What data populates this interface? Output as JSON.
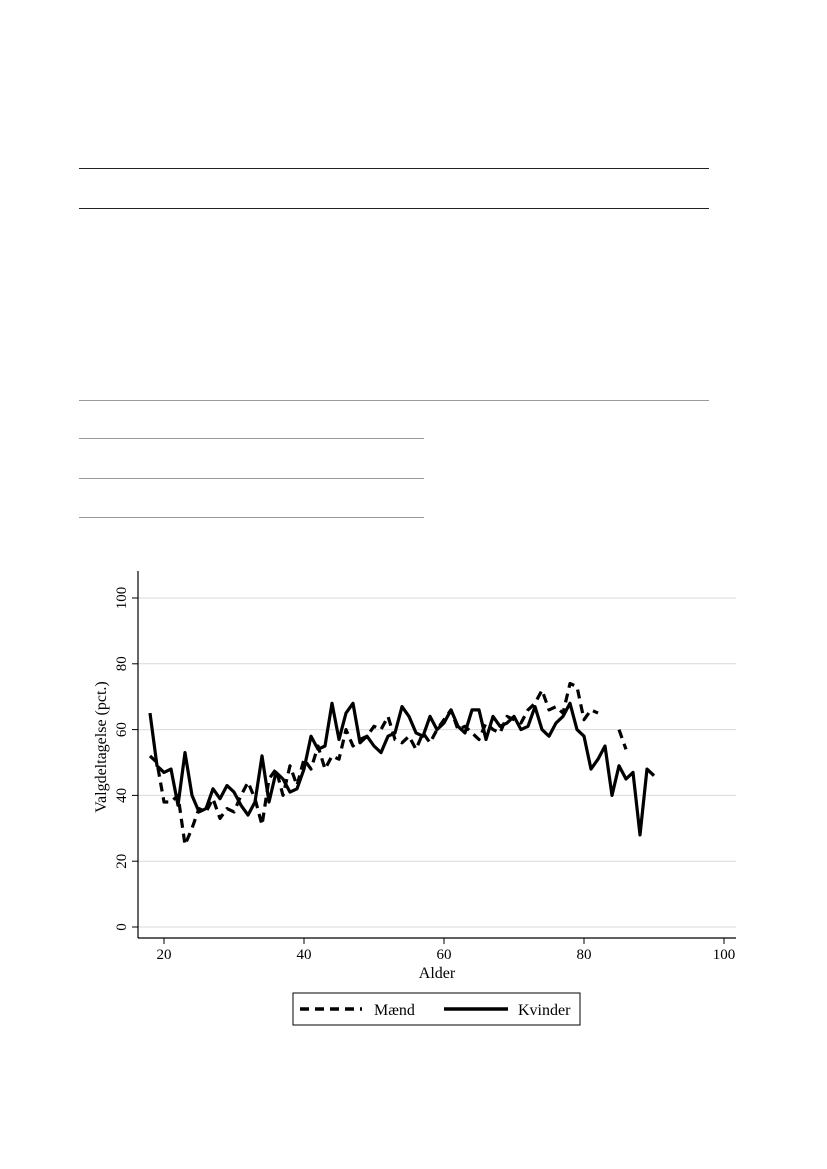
{
  "chart_data": {
    "type": "line",
    "title": "",
    "xlabel": "Alder",
    "ylabel": "Valgdeltagelse (pct.)",
    "xlim": [
      16,
      100
    ],
    "ylim": [
      -2,
      108
    ],
    "xticks": [
      20,
      40,
      60,
      80,
      100
    ],
    "yticks": [
      0,
      20,
      40,
      60,
      80,
      100
    ],
    "grid": "horizontal",
    "legend": "bottom-center",
    "x": [
      18,
      19,
      20,
      21,
      22,
      23,
      24,
      25,
      26,
      27,
      28,
      29,
      30,
      31,
      32,
      33,
      34,
      35,
      36,
      37,
      38,
      39,
      40,
      41,
      42,
      43,
      44,
      45,
      46,
      47,
      48,
      49,
      50,
      51,
      52,
      53,
      54,
      55,
      56,
      57,
      58,
      59,
      60,
      61,
      62,
      63,
      64,
      65,
      66,
      67,
      68,
      69,
      70,
      71,
      72,
      73,
      74,
      75,
      76,
      77,
      78,
      79,
      80,
      81,
      82,
      83,
      84,
      85,
      86,
      87,
      88,
      89,
      90,
      91
    ],
    "series": [
      {
        "name": "Mænd",
        "style": "dashed",
        "values": [
          52,
          50,
          38,
          38,
          40,
          25,
          30,
          36,
          35,
          39,
          33,
          36,
          35,
          40,
          44,
          39,
          31,
          45,
          48,
          40,
          49,
          43,
          51,
          48,
          55,
          48,
          52,
          51,
          60,
          55,
          57,
          58,
          61,
          60,
          64,
          57,
          56,
          58,
          54,
          59,
          56,
          60,
          63,
          66,
          60,
          61,
          59,
          57,
          62,
          60,
          59,
          64,
          63,
          62,
          66,
          68,
          72,
          66,
          67,
          65,
          74,
          73,
          63,
          66,
          65,
          null,
          null,
          60,
          54,
          null,
          null,
          null,
          null,
          null
        ]
      },
      {
        "name": "Kvinder",
        "style": "solid",
        "values": [
          65,
          49,
          47,
          48,
          37,
          53,
          40,
          35,
          36,
          42,
          39,
          43,
          41,
          37,
          34,
          38,
          52,
          38,
          47,
          45,
          41,
          42,
          48,
          58,
          54,
          55,
          68,
          57,
          65,
          68,
          56,
          58,
          55,
          53,
          58,
          59,
          67,
          64,
          59,
          58,
          64,
          60,
          62,
          66,
          61,
          59,
          66,
          66,
          57,
          64,
          61,
          62,
          64,
          60,
          61,
          67,
          60,
          58,
          62,
          64,
          68,
          60,
          58,
          48,
          51,
          55,
          40,
          49,
          45,
          47,
          28,
          48,
          46,
          null
        ]
      }
    ]
  },
  "chart_style": {
    "line_color": "#000000",
    "grid_color": "#d9d9d9",
    "axis_color": "#000000"
  }
}
